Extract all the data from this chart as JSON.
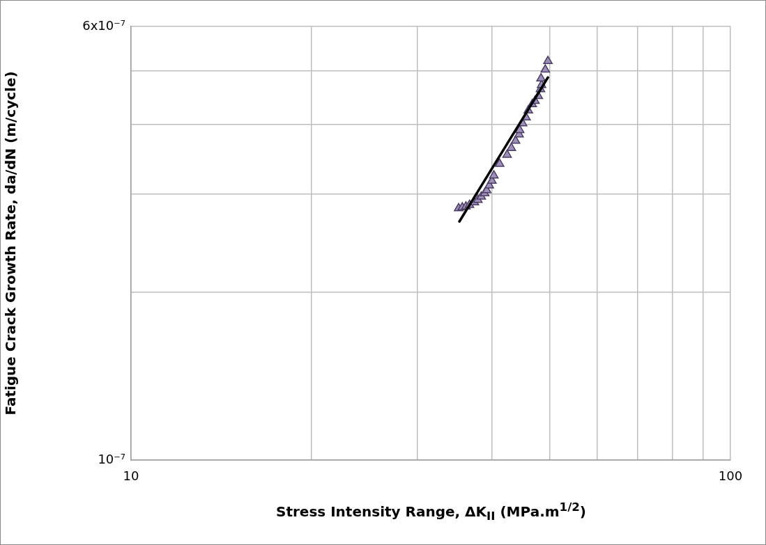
{
  "chart_data": {
    "type": "scatter",
    "xlabel": "Stress Intensity Range, ΔK$_{II}$ (MPa.m$^{1/2}$)",
    "ylabel": "Fatigue Crack Growth Rate, da/dN (m/cycle)",
    "log": "xy",
    "grid": true,
    "legend": false,
    "marker": "triangle",
    "xlim": [
      10,
      100
    ],
    "ylim": [
      1e-07,
      6e-07
    ],
    "xticks": [
      10,
      {
        "value": 20,
        "label": null
      },
      {
        "value": 30,
        "label": null
      },
      {
        "value": 40,
        "label": null
      },
      {
        "value": 50,
        "label": null
      },
      {
        "value": 60,
        "label": null
      },
      {
        "value": 70,
        "label": null
      },
      {
        "value": 80,
        "label": null
      },
      {
        "value": 90,
        "label": null
      },
      100
    ],
    "yticks": [
      {
        "value": 1e-07,
        "label": "10⁻⁷"
      },
      {
        "value": 2e-07,
        "label": null
      },
      {
        "value": 3e-07,
        "label": null
      },
      {
        "value": 4e-07,
        "label": null
      },
      {
        "value": 5e-07,
        "label": null
      },
      {
        "value": 6e-07,
        "label": "6x10⁻⁷"
      }
    ],
    "series": [
      {
        "type": "scatter",
        "color": "#9c8fb8",
        "x": [
          35.2,
          35.7,
          36.2,
          36.7,
          37.4,
          37.9,
          38.4,
          38.9,
          39.2,
          39.6,
          40.0,
          40.3,
          41.2,
          42.4,
          43.1,
          43.8,
          44.4,
          44.5,
          45.0,
          45.6,
          46.0,
          46.7,
          47.2,
          47.8,
          48.2,
          48.4,
          48.3,
          49.1,
          49.6
        ],
        "values": [
          2.83e-07,
          2.84e-07,
          2.85e-07,
          2.87e-07,
          2.9e-07,
          2.93e-07,
          2.97e-07,
          3.01e-07,
          3.05e-07,
          3.11e-07,
          3.17e-07,
          3.24e-07,
          3.4e-07,
          3.53e-07,
          3.63e-07,
          3.74e-07,
          3.84e-07,
          3.91e-07,
          4.02e-07,
          4.12e-07,
          4.24e-07,
          4.35e-07,
          4.41e-07,
          4.5e-07,
          4.63e-07,
          4.71e-07,
          4.84e-07,
          5.02e-07,
          5.2e-07
        ]
      },
      {
        "type": "line",
        "color": "#000000",
        "marker": "none",
        "x": [
          35.3,
          49.6
        ],
        "values": [
          2.68e-07,
          4.86e-07
        ]
      }
    ]
  }
}
